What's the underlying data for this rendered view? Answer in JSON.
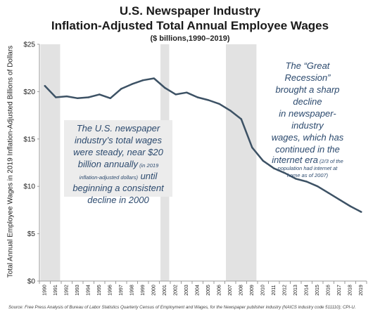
{
  "chart_data": {
    "type": "line",
    "title": "U.S. Newspaper Industry",
    "subtitle": "Inflation-Adjusted Total Annual Employee Wages",
    "subtitle2": "($ billions,1990–2019)",
    "ylabel": "Total  Annual Employee Wages in 2019 Inflation-Adjusted Billions of Dollars",
    "xlabel": "",
    "ylim": [
      0,
      25
    ],
    "yticks": [
      "$0",
      "$5",
      "$10",
      "$15",
      "$20",
      "$25"
    ],
    "x": [
      "1990",
      "1991",
      "1992",
      "1993",
      "1994",
      "1995",
      "1996",
      "1997",
      "1998",
      "1999",
      "2000",
      "2001",
      "2002",
      "2003",
      "2004",
      "2005",
      "2006",
      "2007",
      "2008",
      "2009",
      "2010",
      "2011",
      "2012",
      "2013",
      "2014",
      "2015",
      "2016",
      "2017",
      "2018",
      "2019"
    ],
    "values": [
      20.6,
      19.4,
      19.5,
      19.3,
      19.4,
      19.7,
      19.3,
      20.3,
      20.8,
      21.2,
      21.4,
      20.4,
      19.7,
      19.9,
      19.4,
      19.1,
      18.7,
      18.0,
      17.1,
      14.1,
      12.7,
      11.9,
      11.4,
      10.8,
      10.5,
      10.0,
      9.3,
      8.6,
      7.9,
      7.3
    ],
    "shaded_periods": [
      [
        "1990",
        "1991"
      ],
      [
        "2001",
        "2001"
      ],
      [
        "2007",
        "2009"
      ]
    ],
    "grid": false,
    "line_color": "#3d5265",
    "shade_color": "#e2e2e2",
    "annotations": {
      "left": {
        "line1": "The U.S. newspaper",
        "line2": "industry’s total wages",
        "line3": "were steady, near $20",
        "line4_main": "billion annually",
        "line4_small": " (in 2019",
        "line5_small": "inflation-adjusted dollars)",
        "line5_main": " until",
        "line6": "beginning a consistent",
        "line7": "decline in 2000"
      },
      "right": {
        "line1": "The “Great Recession”",
        "line2": "brought a sharp decline",
        "line3": "in newspaper-industry",
        "line4": "wages, which has",
        "line5": "continued in the",
        "line6_main": "internet era",
        "line6_small": " (2/3 of the",
        "line7_small": "population had internet at",
        "line8_small": "home as of 2007)"
      }
    },
    "source": "Source: Free Press Analysis of  Bureau of Labor Statistics Quarterly Census of Employment and Wages, for the Newspaper publisher industry (NAICS industry code 511110); CPI-U."
  }
}
